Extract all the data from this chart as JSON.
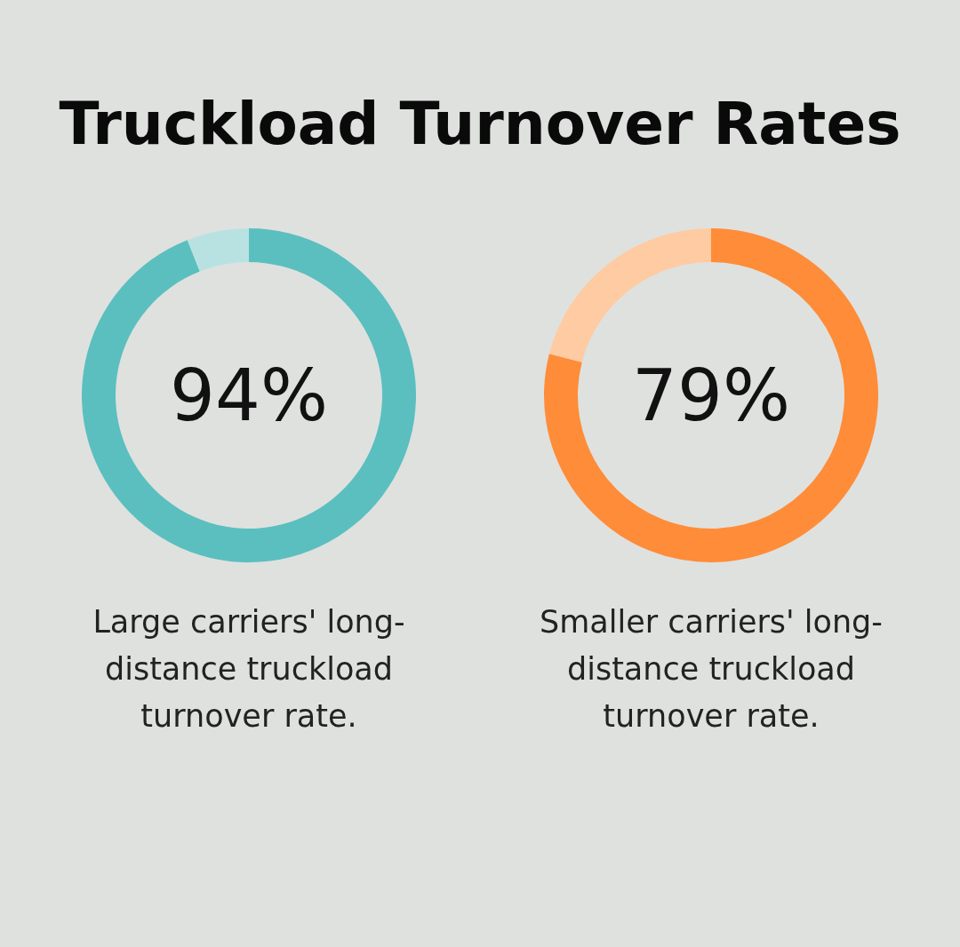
{
  "chart_data": [
    {
      "type": "donut",
      "title": "Truckload Turnover Rates",
      "categories": [
        null,
        null
      ],
      "values": [
        94,
        6
      ],
      "colors": [
        "#5bbfbf",
        "#b8e2e2"
      ],
      "value_labels": [
        "94%",
        null
      ],
      "annotations": [
        "Large carriers' long-distance truckload turnover rate."
      ]
    },
    {
      "type": "donut",
      "categories": [
        null,
        null
      ],
      "values": [
        79,
        21
      ],
      "colors": [
        "#ff8c38",
        "#ffcba2"
      ],
      "value_labels": [
        "79%",
        null
      ],
      "annotations": [
        "Smaller carriers' long-distance truckload turnover rate."
      ]
    }
  ]
}
